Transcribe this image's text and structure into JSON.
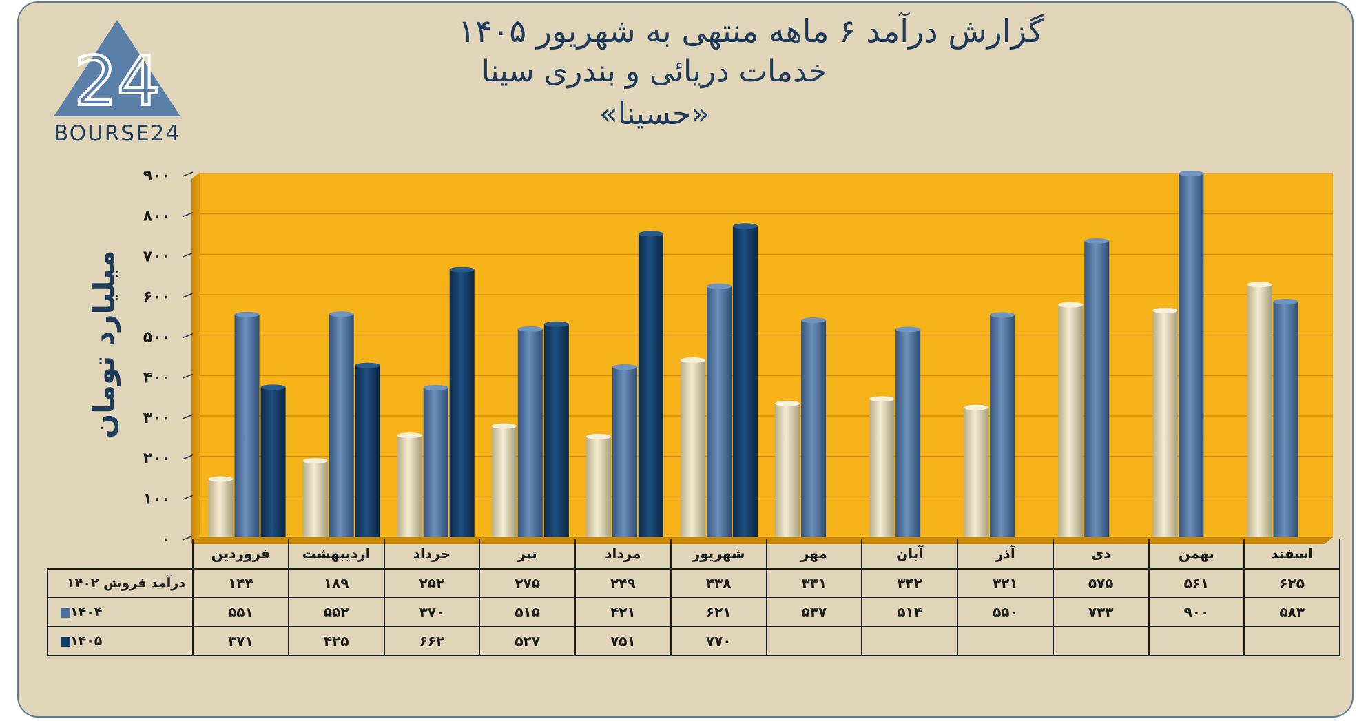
{
  "title": {
    "line1": "گزارش  درآمد ۶ ماهه منتهی به شهریور ۱۴۰۵",
    "line2": "خدمات دریائی و بندری سینا",
    "line3": "«حسینا»"
  },
  "logo": {
    "text": "BOURSE24",
    "number": "24"
  },
  "colors": {
    "background": "#e0d5b8",
    "plot_background": "#f6b219",
    "series_1402": "#ddd3af",
    "series_1404": "#4a6f9b",
    "series_1405": "#153e6a",
    "axis_text": "#1f3b5c"
  },
  "chart_data": {
    "type": "bar",
    "ylabel": "میلیارد تومان",
    "ylim": [
      0,
      900
    ],
    "yticks": [
      "۰",
      "۱۰۰",
      "۲۰۰",
      "۳۰۰",
      "۴۰۰",
      "۵۰۰",
      "۶۰۰",
      "۷۰۰",
      "۸۰۰",
      "۹۰۰"
    ],
    "grid": true,
    "categories": [
      "فروردین",
      "اردیبهشت",
      "خرداد",
      "تیر",
      "مرداد",
      "شهریور",
      "مهر",
      "آبان",
      "آذر",
      "دی",
      "بهمن",
      "اسفند"
    ],
    "series": [
      {
        "name": "درآمد فروش ۱۴۰۲",
        "values": [
          144,
          189,
          252,
          275,
          249,
          438,
          331,
          342,
          321,
          575,
          561,
          625
        ]
      },
      {
        "name": "۱۴۰۴",
        "values": [
          551,
          552,
          370,
          515,
          421,
          621,
          537,
          514,
          550,
          733,
          900,
          583
        ]
      },
      {
        "name": "۱۴۰۵",
        "values": [
          371,
          425,
          662,
          527,
          751,
          770,
          null,
          null,
          null,
          null,
          null,
          null
        ]
      }
    ]
  },
  "table": {
    "rows": [
      {
        "label": "درآمد فروش ۱۴۰۲",
        "cells": [
          "۱۴۴",
          "۱۸۹",
          "۲۵۲",
          "۲۷۵",
          "۲۴۹",
          "۴۳۸",
          "۳۳۱",
          "۳۴۲",
          "۳۲۱",
          "۵۷۵",
          "۵۶۱",
          "۶۲۵"
        ]
      },
      {
        "label": "۱۴۰۴",
        "cells": [
          "۵۵۱",
          "۵۵۲",
          "۳۷۰",
          "۵۱۵",
          "۴۲۱",
          "۶۲۱",
          "۵۳۷",
          "۵۱۴",
          "۵۵۰",
          "۷۳۳",
          "۹۰۰",
          "۵۸۳"
        ]
      },
      {
        "label": "۱۴۰۵",
        "cells": [
          "۳۷۱",
          "۴۲۵",
          "۶۶۲",
          "۵۲۷",
          "۷۵۱",
          "۷۷۰",
          "",
          "",
          "",
          "",
          "",
          ""
        ]
      }
    ]
  }
}
